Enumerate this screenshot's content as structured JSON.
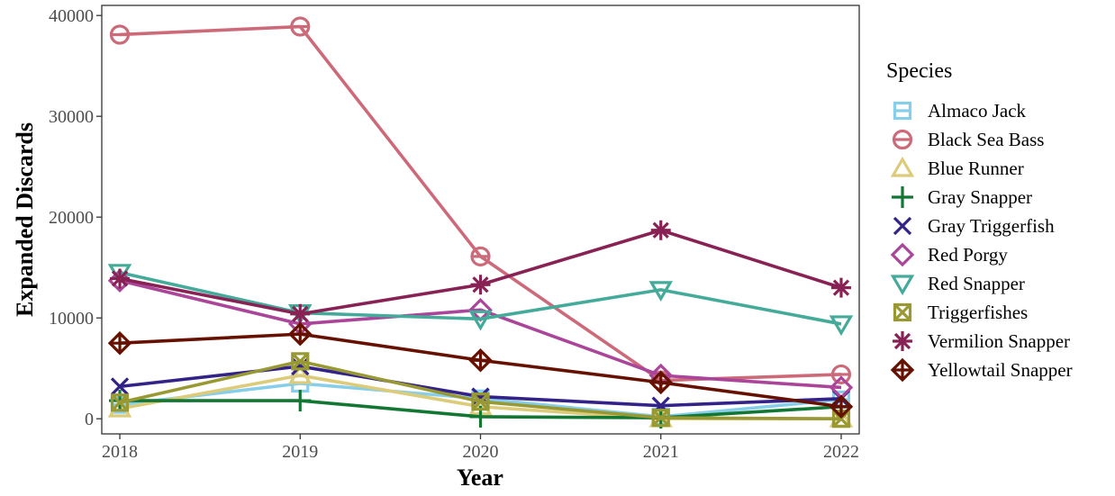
{
  "chart_data": {
    "type": "line",
    "title": "",
    "xlabel": "Year",
    "ylabel": "Expanded Discards",
    "x": [
      2018,
      2019,
      2020,
      2021,
      2022
    ],
    "xlim": [
      2017.9,
      2022.1
    ],
    "ylim": [
      -1500,
      41000
    ],
    "yticks": [
      0,
      10000,
      20000,
      30000,
      40000
    ],
    "grid": false,
    "legend": {
      "title": "Species",
      "position": "right"
    },
    "series": [
      {
        "name": "Almaco Jack",
        "color": "#87ceeb",
        "marker": "square-minus",
        "values": [
          1400,
          3500,
          2000,
          200,
          1900
        ]
      },
      {
        "name": "Black Sea Bass",
        "color": "#cd6a7a",
        "marker": "circle-minus",
        "values": [
          38100,
          38900,
          16100,
          3800,
          4400
        ]
      },
      {
        "name": "Blue Runner",
        "color": "#dccb79",
        "marker": "triangle",
        "values": [
          1000,
          4300,
          1200,
          0,
          0
        ]
      },
      {
        "name": "Gray Snapper",
        "color": "#117733",
        "marker": "plus",
        "values": [
          1800,
          1800,
          200,
          100,
          1200
        ]
      },
      {
        "name": "Gray Triggerfish",
        "color": "#332287",
        "marker": "cross",
        "values": [
          3200,
          5200,
          2200,
          1300,
          2000
        ]
      },
      {
        "name": "Red Porgy",
        "color": "#aa4599",
        "marker": "diamond",
        "values": [
          13700,
          9400,
          10800,
          4300,
          3100
        ]
      },
      {
        "name": "Red Snapper",
        "color": "#44aa99",
        "marker": "triangle-down",
        "values": [
          14500,
          10500,
          9900,
          12800,
          9400
        ]
      },
      {
        "name": "Triggerfishes",
        "color": "#999933",
        "marker": "square-x",
        "values": [
          1600,
          5700,
          1700,
          100,
          0
        ]
      },
      {
        "name": "Vermilion Snapper",
        "color": "#882255",
        "marker": "asterisk",
        "values": [
          13900,
          10400,
          13300,
          18700,
          13000
        ]
      },
      {
        "name": "Yellowtail Snapper",
        "color": "#661100",
        "marker": "diamond-plus",
        "values": [
          7500,
          8400,
          5800,
          3600,
          1200
        ]
      }
    ]
  }
}
